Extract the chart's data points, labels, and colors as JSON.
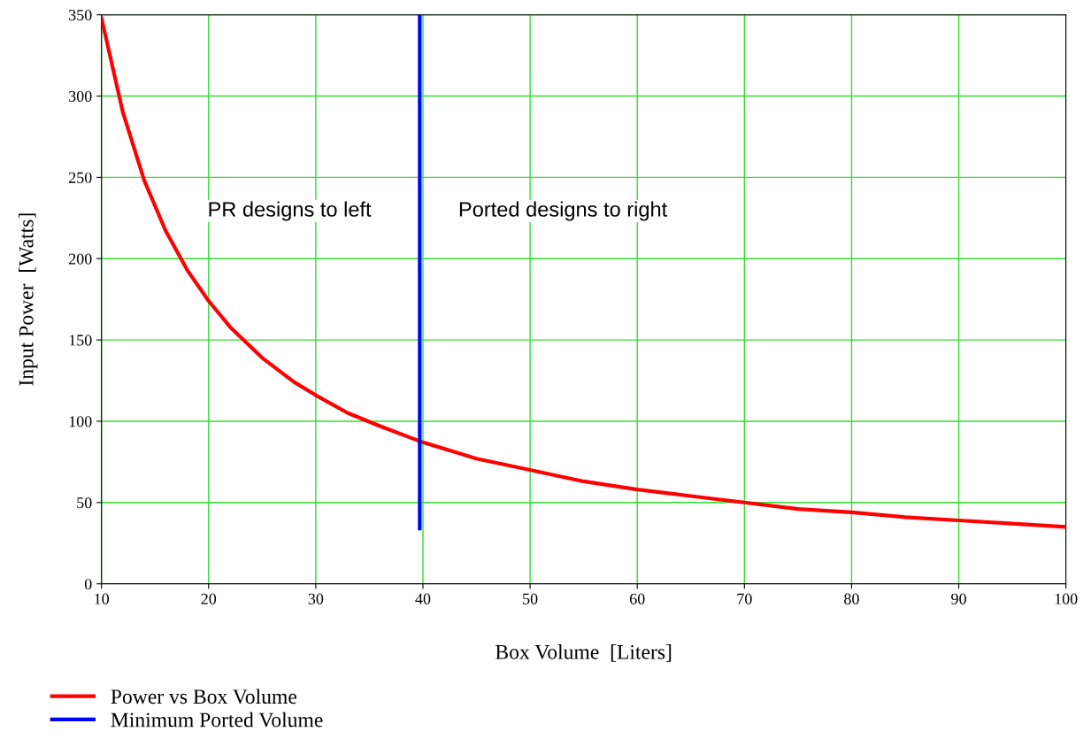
{
  "chart_data": {
    "type": "line",
    "xlabel": "Box Volume  [Liters]",
    "ylabel": "Input Power  [Watts]",
    "x": [
      10,
      12,
      14,
      16,
      18,
      20,
      22,
      25,
      28,
      30,
      33,
      36,
      40,
      45,
      50,
      55,
      60,
      65,
      70,
      75,
      80,
      85,
      90,
      95,
      100
    ],
    "series": [
      {
        "name": "Power vs Box Volume",
        "color": "#ff0000",
        "values": [
          348,
          290,
          248,
          217,
          193,
          174,
          158,
          139,
          124,
          116,
          105,
          97,
          87,
          77,
          70,
          63,
          58,
          54,
          50,
          46,
          44,
          41,
          39,
          37,
          35
        ]
      },
      {
        "name": "Minimum Ported Volume",
        "color": "#0000ff",
        "x": [
          39.7,
          39.7
        ],
        "values": [
          34,
          350
        ]
      }
    ],
    "annotations": [
      "PR designs to left",
      "Ported designs to right"
    ],
    "xlim": [
      10,
      100
    ],
    "xticks": [
      10,
      20,
      30,
      40,
      50,
      60,
      70,
      80,
      90,
      100
    ],
    "ylim": [
      0,
      350
    ],
    "yticks": [
      0,
      50,
      100,
      150,
      200,
      250,
      300,
      350
    ],
    "grid": true,
    "legend": "bottom left",
    "marker": "none",
    "line_style": "solid"
  }
}
